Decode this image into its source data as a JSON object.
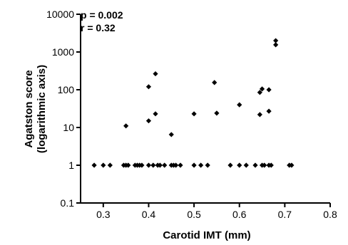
{
  "chart_data": {
    "type": "scatter",
    "xlabel": "Carotid IMT (mm)",
    "ylabel_lines": [
      "Agatston score",
      "(logarithmic axis)"
    ],
    "annotations": [
      "p = 0.002",
      "r = 0.32"
    ],
    "xlim": [
      0.25,
      0.8
    ],
    "ylim": [
      0.1,
      10000
    ],
    "yscale": "log",
    "x_ticks": [
      "0.3",
      "0.4",
      "0.5",
      "0.6",
      "0.7",
      "0.8"
    ],
    "y_ticks": [
      "0.1",
      "1",
      "10",
      "100",
      "1000",
      "10000"
    ],
    "grid": false,
    "series": [
      {
        "marker": "diamond",
        "color": "#000000",
        "points": [
          {
            "x": 0.28,
            "y": 1
          },
          {
            "x": 0.3,
            "y": 1
          },
          {
            "x": 0.315,
            "y": 1
          },
          {
            "x": 0.345,
            "y": 1
          },
          {
            "x": 0.35,
            "y": 1
          },
          {
            "x": 0.355,
            "y": 1
          },
          {
            "x": 0.37,
            "y": 1
          },
          {
            "x": 0.375,
            "y": 1
          },
          {
            "x": 0.38,
            "y": 1
          },
          {
            "x": 0.385,
            "y": 1
          },
          {
            "x": 0.4,
            "y": 1
          },
          {
            "x": 0.41,
            "y": 1
          },
          {
            "x": 0.42,
            "y": 1
          },
          {
            "x": 0.425,
            "y": 1
          },
          {
            "x": 0.435,
            "y": 1
          },
          {
            "x": 0.45,
            "y": 1
          },
          {
            "x": 0.455,
            "y": 1
          },
          {
            "x": 0.46,
            "y": 1
          },
          {
            "x": 0.47,
            "y": 1
          },
          {
            "x": 0.5,
            "y": 1
          },
          {
            "x": 0.515,
            "y": 1
          },
          {
            "x": 0.53,
            "y": 1
          },
          {
            "x": 0.58,
            "y": 1
          },
          {
            "x": 0.6,
            "y": 1
          },
          {
            "x": 0.615,
            "y": 1
          },
          {
            "x": 0.635,
            "y": 1
          },
          {
            "x": 0.65,
            "y": 1
          },
          {
            "x": 0.655,
            "y": 1
          },
          {
            "x": 0.665,
            "y": 1
          },
          {
            "x": 0.67,
            "y": 1
          },
          {
            "x": 0.71,
            "y": 1
          },
          {
            "x": 0.715,
            "y": 1
          },
          {
            "x": 0.35,
            "y": 11
          },
          {
            "x": 0.4,
            "y": 15
          },
          {
            "x": 0.415,
            "y": 23
          },
          {
            "x": 0.4,
            "y": 120
          },
          {
            "x": 0.415,
            "y": 265
          },
          {
            "x": 0.45,
            "y": 6.5
          },
          {
            "x": 0.5,
            "y": 23
          },
          {
            "x": 0.545,
            "y": 155
          },
          {
            "x": 0.55,
            "y": 24
          },
          {
            "x": 0.6,
            "y": 40
          },
          {
            "x": 0.645,
            "y": 22
          },
          {
            "x": 0.645,
            "y": 85
          },
          {
            "x": 0.65,
            "y": 105
          },
          {
            "x": 0.665,
            "y": 27
          },
          {
            "x": 0.665,
            "y": 100
          },
          {
            "x": 0.68,
            "y": 2000
          },
          {
            "x": 0.68,
            "y": 1550
          }
        ]
      }
    ]
  }
}
